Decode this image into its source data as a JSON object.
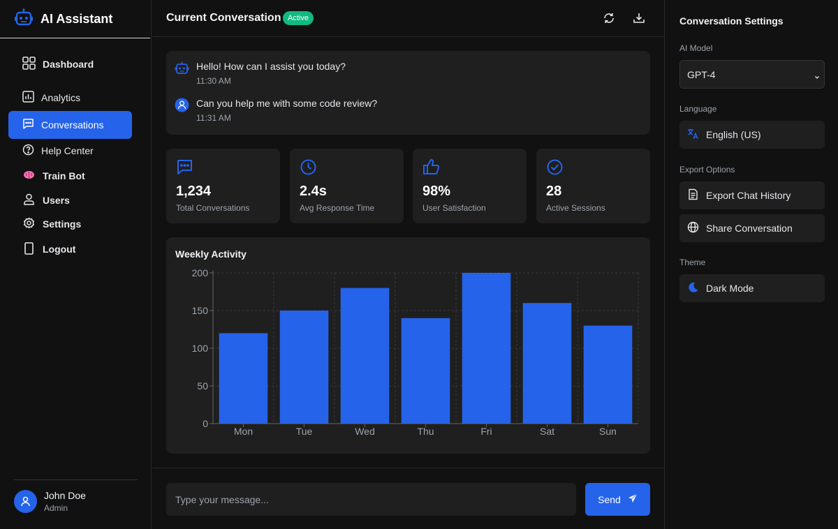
{
  "app": {
    "title": "AI Assistant"
  },
  "sidebar": {
    "items": [
      {
        "label": "Dashboard",
        "icon": "grid-icon"
      },
      {
        "label": "Analytics",
        "icon": "bar-chart-icon"
      },
      {
        "label": "Conversations",
        "icon": "chat-icon",
        "active": true
      },
      {
        "label": "Help Center",
        "icon": "question-circle-icon"
      },
      {
        "label": "Train Bot",
        "icon": "brain-icon"
      },
      {
        "label": "Users",
        "icon": "user-icon"
      },
      {
        "label": "Settings",
        "icon": "gear-icon"
      },
      {
        "label": "Logout",
        "icon": "logout-icon"
      }
    ],
    "user": {
      "name": "John Doe",
      "role": "Admin"
    }
  },
  "header": {
    "title": "Current Conversation",
    "status": "Active"
  },
  "chat": {
    "messages": [
      {
        "sender": "bot",
        "text": "Hello! How can I assist you today?",
        "time": "11:30 AM"
      },
      {
        "sender": "user",
        "text": "Can you help me with some code review?",
        "time": "11:31 AM"
      }
    ]
  },
  "stats": [
    {
      "value": "1,234",
      "label": "Total Conversations",
      "icon": "chat-icon"
    },
    {
      "value": "2.4s",
      "label": "Avg Response Time",
      "icon": "clock-icon"
    },
    {
      "value": "98%",
      "label": "User Satisfaction",
      "icon": "thumbs-up-icon"
    },
    {
      "value": "28",
      "label": "Active Sessions",
      "icon": "check-circle-icon"
    }
  ],
  "chart_data": {
    "type": "bar",
    "title": "Weekly Activity",
    "categories": [
      "Mon",
      "Tue",
      "Wed",
      "Thu",
      "Fri",
      "Sat",
      "Sun"
    ],
    "values": [
      120,
      150,
      180,
      140,
      200,
      160,
      130
    ],
    "ylim": [
      0,
      200
    ],
    "yticks": [
      0,
      50,
      100,
      150,
      200
    ],
    "grid": true,
    "bar_color": "#2563eb"
  },
  "composer": {
    "placeholder": "Type your message...",
    "send_label": "Send"
  },
  "settings": {
    "title": "Conversation Settings",
    "model_label": "AI Model",
    "model_value": "GPT-4",
    "language_label": "Language",
    "language_value": "English (US)",
    "export_label": "Export Options",
    "export_chat": "Export Chat History",
    "share": "Share Conversation",
    "theme_label": "Theme",
    "theme_value": "Dark Mode"
  },
  "colors": {
    "accent": "#2563eb",
    "success": "#10b981",
    "surface": "#1f1f1f"
  }
}
